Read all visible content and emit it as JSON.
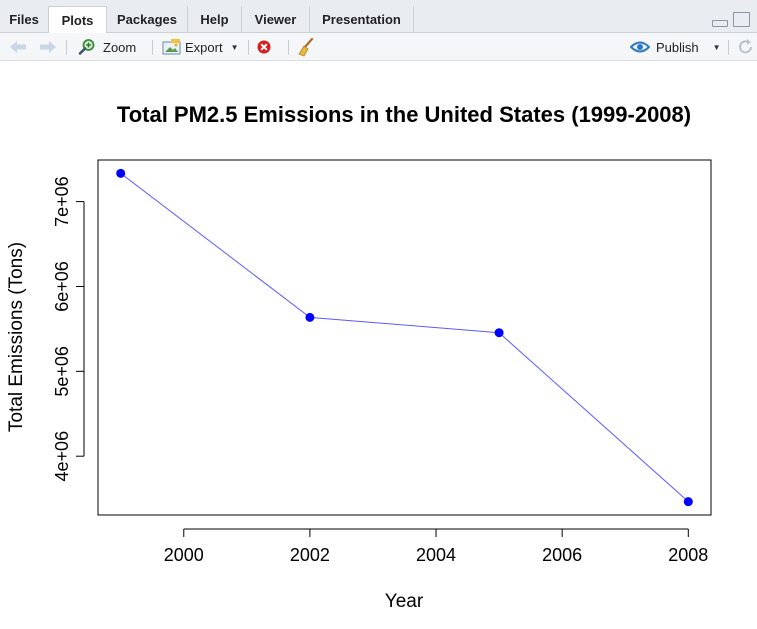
{
  "tabs": [
    {
      "label": "Files"
    },
    {
      "label": "Plots"
    },
    {
      "label": "Packages"
    },
    {
      "label": "Help"
    },
    {
      "label": "Viewer"
    },
    {
      "label": "Presentation"
    }
  ],
  "toolbar": {
    "zoom_label": "Zoom",
    "export_label": "Export",
    "publish_label": "Publish"
  },
  "icons": {
    "back": "arrow-left-icon",
    "forward": "arrow-right-icon",
    "zoom": "magnifier-icon",
    "export": "export-image-icon",
    "remove": "remove-plot-icon",
    "clear": "broom-icon",
    "publish": "publish-eye-icon",
    "refresh": "refresh-icon"
  },
  "chart_data": {
    "type": "line",
    "title": "Total PM2.5 Emissions in the United States (1999-2008)",
    "xlabel": "Year",
    "ylabel": "Total Emissions (Tons)",
    "x": [
      1999,
      2002,
      2005,
      2008
    ],
    "values": [
      7332967,
      5635780,
      5454703,
      3464206
    ],
    "xticks": [
      2000,
      2002,
      2004,
      2006,
      2008
    ],
    "xtick_labels": [
      "2000",
      "2002",
      "2004",
      "2006",
      "2008"
    ],
    "yticks": [
      4000000,
      5000000,
      6000000,
      7000000
    ],
    "ytick_labels": [
      "4e+06",
      "5e+06",
      "6e+06",
      "7e+06"
    ],
    "xlim": [
      1998.64,
      2008.36
    ],
    "ylim": [
      3307096,
      7490077
    ],
    "line_color": "#5b5bff",
    "point_color": "#0000ff",
    "grid": false
  }
}
